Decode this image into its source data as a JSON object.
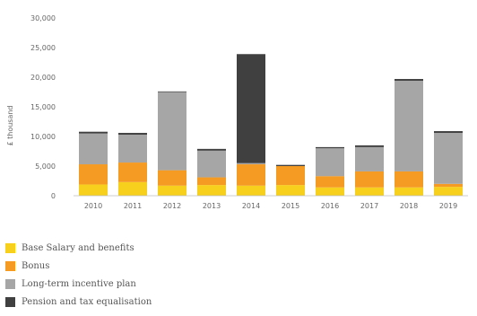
{
  "chart_data": {
    "type": "bar",
    "stacked": true,
    "title": "",
    "xlabel": "",
    "ylabel": "£ thousand",
    "ylim": [
      0,
      30000
    ],
    "yticks": [
      0,
      5000,
      10000,
      15000,
      20000,
      25000,
      30000
    ],
    "ytick_labels": [
      "0",
      "5,000",
      "10,000",
      "15,000",
      "20,000",
      "25,000",
      "30,000"
    ],
    "categories": [
      "2010",
      "2011",
      "2012",
      "2013",
      "2014",
      "2015",
      "2016",
      "2017",
      "2018",
      "2019"
    ],
    "grid": false,
    "legend_position": "bottom-left",
    "series": [
      {
        "name": "Base Salary and benefits",
        "color": "#f7cf1d",
        "values": [
          1900,
          2300,
          1700,
          1800,
          1700,
          1800,
          1400,
          1400,
          1400,
          1500
        ]
      },
      {
        "name": "Bonus",
        "color": "#f59a23",
        "values": [
          3400,
          3300,
          2600,
          1300,
          3600,
          3200,
          1900,
          2700,
          2700,
          500
        ]
      },
      {
        "name": "Long-term incentive plan",
        "color": "#a6a6a6",
        "values": [
          5200,
          4700,
          13200,
          4500,
          200,
          0,
          4700,
          4100,
          15300,
          8600
        ]
      },
      {
        "name": "Pension and tax equalisation",
        "color": "#404040",
        "values": [
          300,
          300,
          100,
          300,
          18400,
          200,
          200,
          300,
          300,
          300
        ]
      }
    ]
  }
}
